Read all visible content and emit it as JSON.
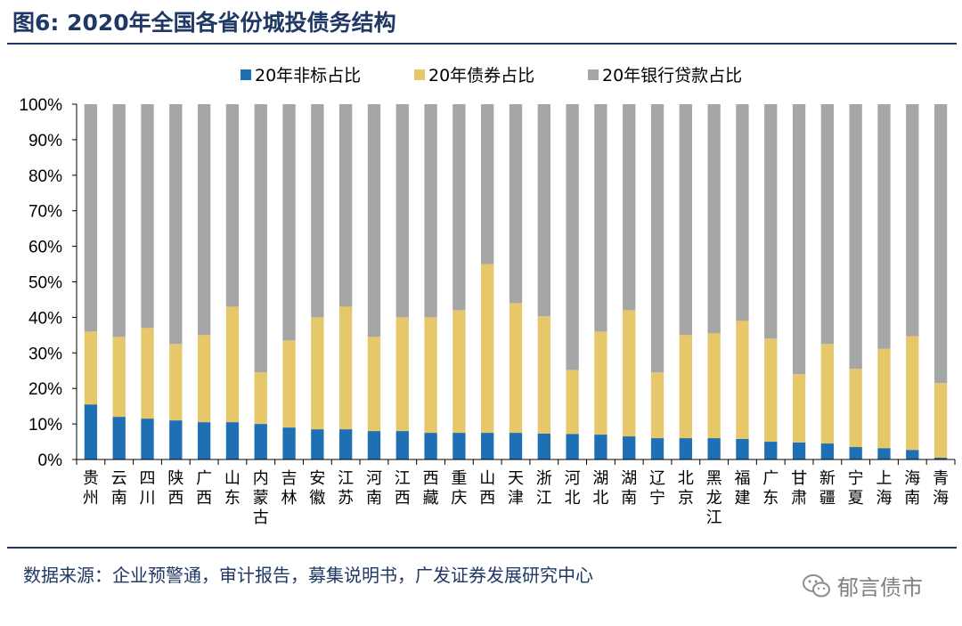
{
  "header": {
    "title": "图6:  2020年全国各省份城投债务结构"
  },
  "footer": {
    "source": "数据来源：企业预警通，审计报告，募集说明书，广发证券发展研究中心",
    "watermark": "郁言债市",
    "watermark_icon": "wechat-icon"
  },
  "colors": {
    "nonstandard": "#1f6fb5",
    "bond": "#e6c86a",
    "bank": "#a6a6a6",
    "brand": "#1f3864"
  },
  "chart_data": {
    "type": "bar",
    "stacked": true,
    "ylim": [
      0,
      100
    ],
    "yticks": [
      "0%",
      "10%",
      "20%",
      "30%",
      "40%",
      "50%",
      "60%",
      "70%",
      "80%",
      "90%",
      "100%"
    ],
    "legend_position": "top",
    "grid": false,
    "categories": [
      "贵州",
      "云南",
      "四川",
      "陕西",
      "广西",
      "山东",
      "内蒙古",
      "吉林",
      "安徽",
      "江苏",
      "河南",
      "江西",
      "西藏",
      "重庆",
      "山西",
      "天津",
      "浙江",
      "河北",
      "湖北",
      "湖南",
      "辽宁",
      "北京",
      "黑龙江",
      "福建",
      "广东",
      "甘肃",
      "新疆",
      "宁夏",
      "上海",
      "海南",
      "青海"
    ],
    "series": [
      {
        "name": "20年非标占比",
        "color": "#1f6fb5",
        "values": [
          15.5,
          12,
          11.5,
          11,
          10.5,
          10.5,
          10,
          9,
          8.5,
          8.5,
          8,
          8,
          7.5,
          7.5,
          7.5,
          7.5,
          7.3,
          7.2,
          7,
          6.5,
          6,
          6,
          6,
          5.8,
          5,
          4.8,
          4.5,
          3.5,
          3.2,
          2.7,
          0.5
        ]
      },
      {
        "name": "20年债券占比",
        "color": "#e6c86a",
        "values": [
          20.5,
          22.5,
          25.5,
          21.5,
          24.5,
          32.5,
          14.5,
          24.5,
          31.5,
          34.5,
          26.5,
          32,
          32.5,
          34.5,
          47.5,
          36.5,
          33,
          18,
          29,
          35.5,
          18.5,
          29,
          29.5,
          33.2,
          29,
          19.2,
          28,
          22,
          28,
          32,
          21
        ]
      },
      {
        "name": "20年银行贷款占比",
        "color": "#a6a6a6",
        "values": [
          64,
          65.5,
          63,
          67.5,
          65,
          57,
          75.5,
          66.5,
          60,
          57,
          65.5,
          60,
          60,
          58,
          45,
          56,
          59.7,
          74.8,
          64,
          58,
          75.5,
          65,
          64.5,
          61,
          66,
          76,
          67.5,
          74.5,
          68.8,
          65.3,
          78.5
        ]
      }
    ]
  }
}
